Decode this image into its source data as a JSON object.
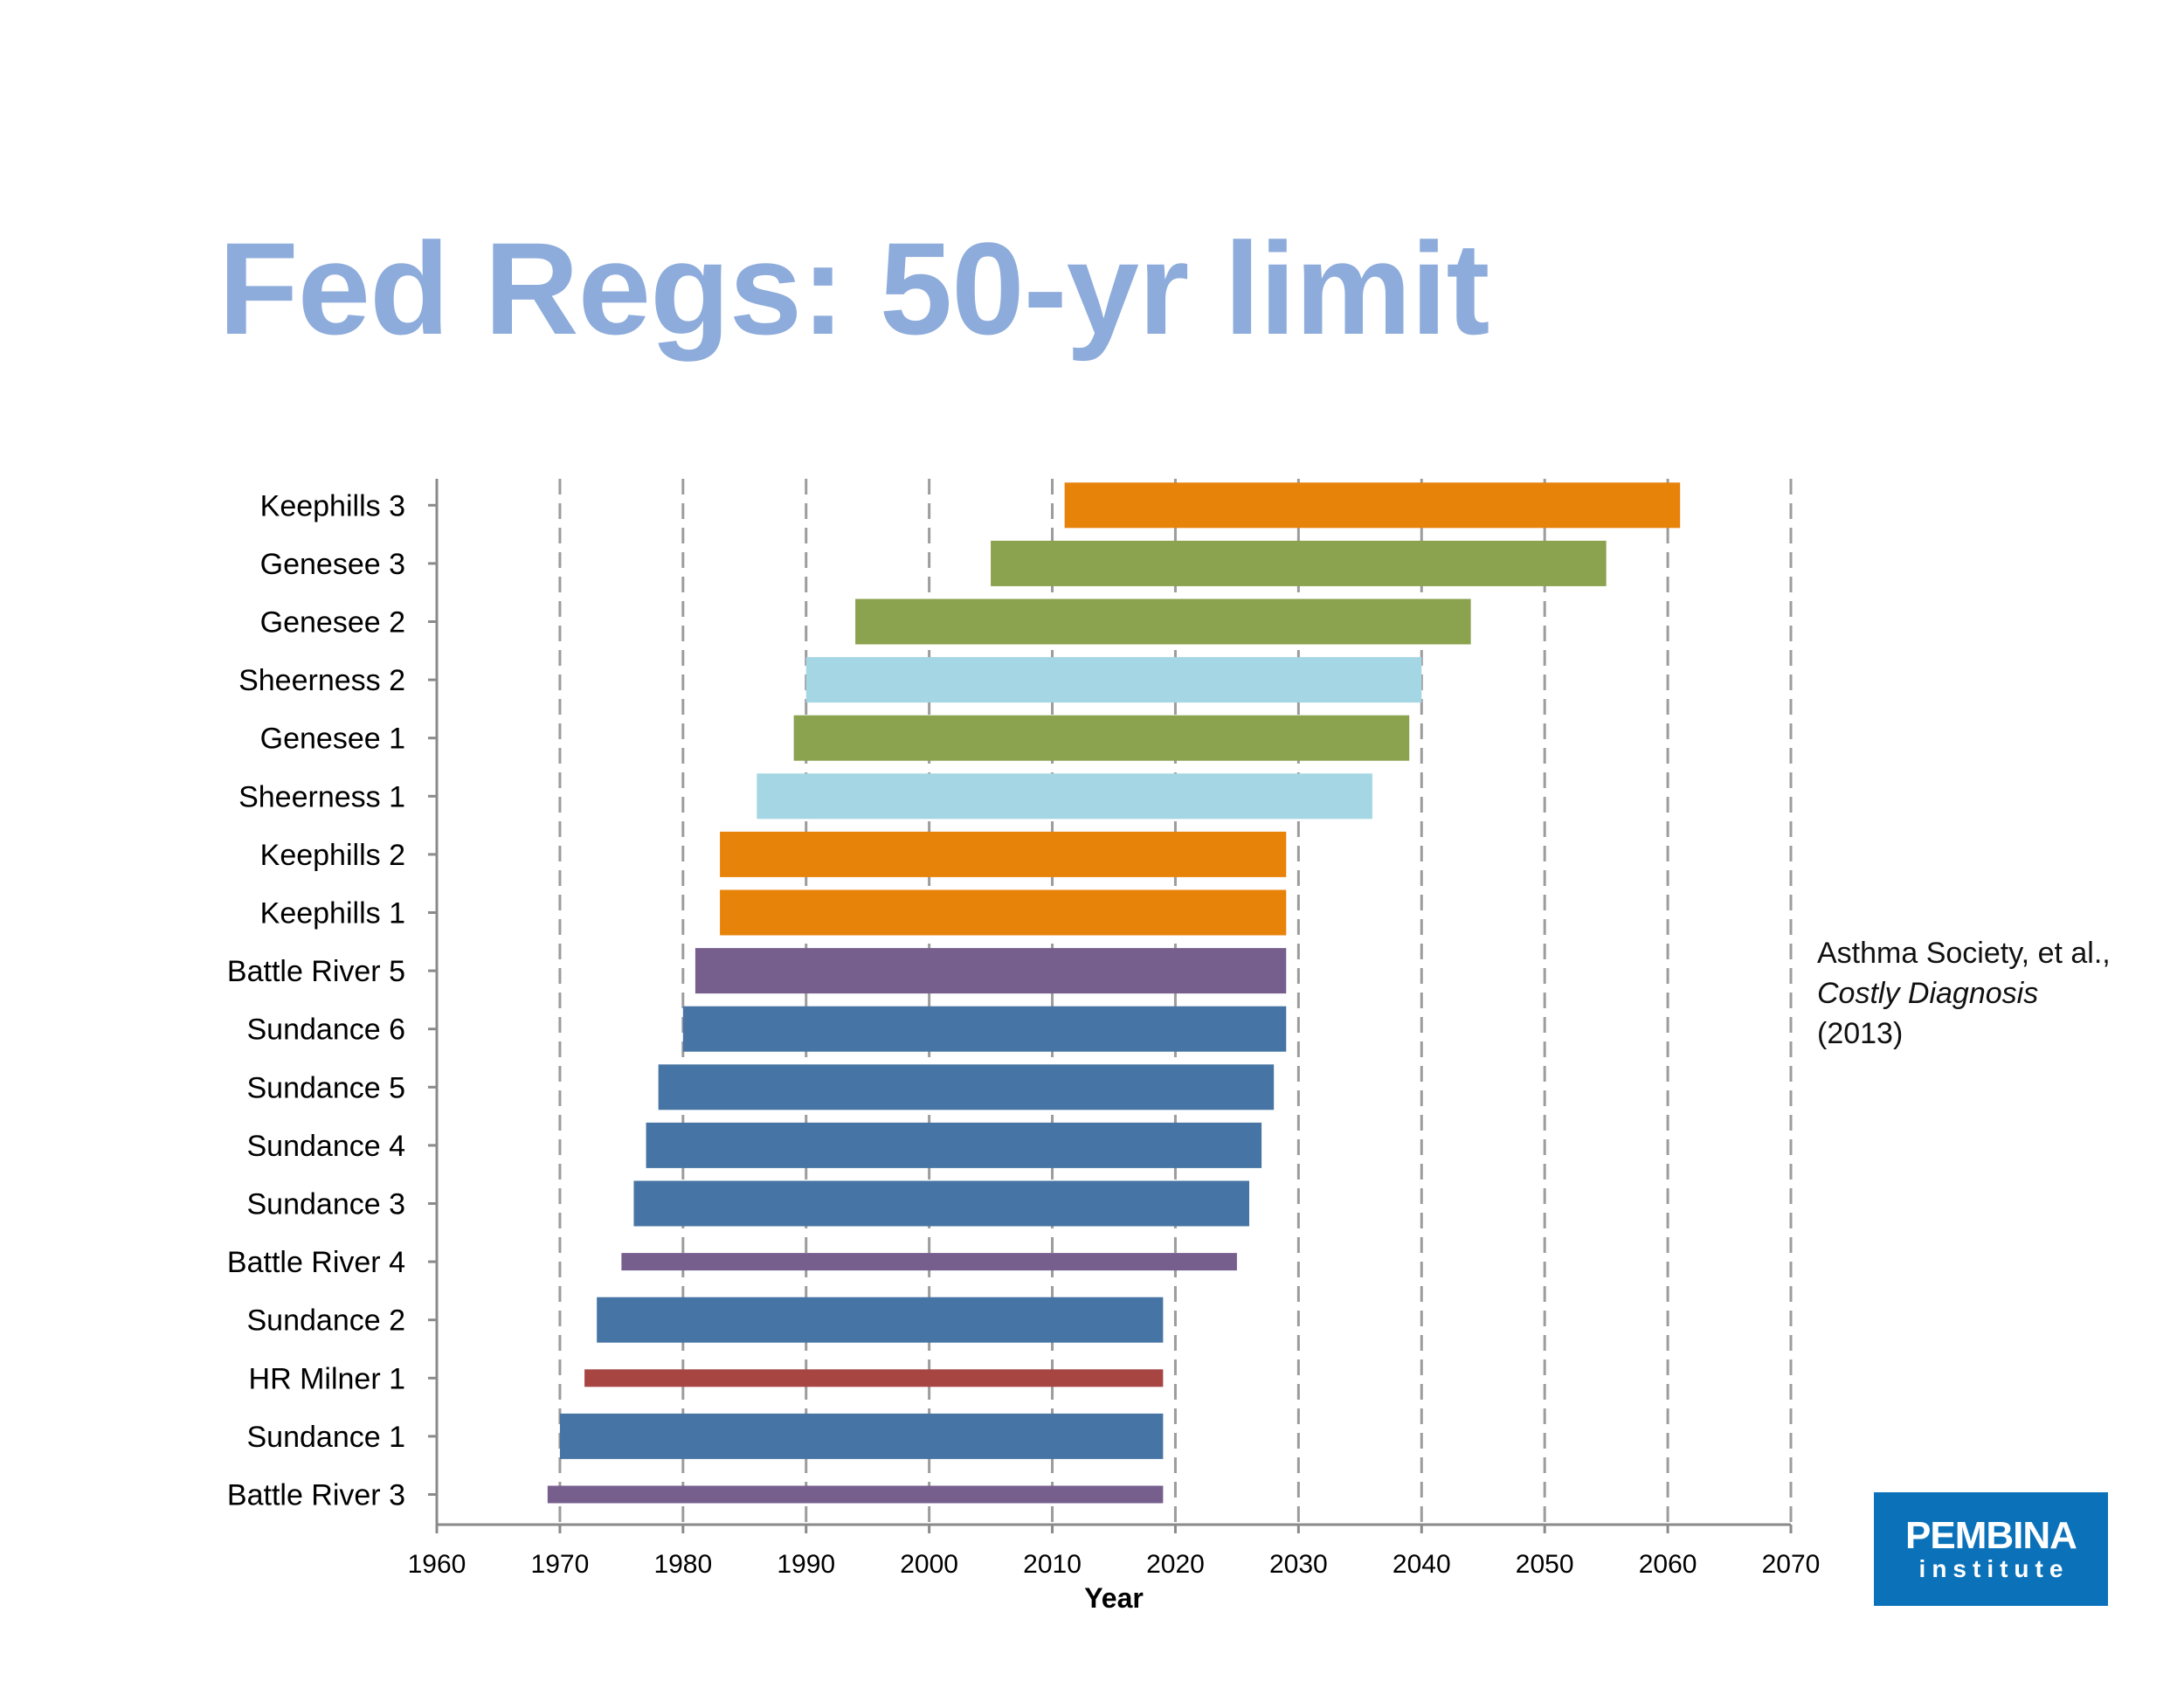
{
  "slide": {
    "title": "Fed Regs: 50-yr limit",
    "citation_prefix": "Asthma Society, et al., ",
    "citation_work": "Costly Diagnosis",
    "citation_year": "(2013)"
  },
  "logo": {
    "name": "PEMBINA",
    "subtitle": "institute",
    "background": "#0B72BA"
  },
  "chart_data": {
    "type": "bar",
    "orientation": "horizontal-range",
    "title": "",
    "xlabel": "Year",
    "ylabel": "",
    "xlim": [
      1960,
      2070
    ],
    "xticks": [
      "1960",
      "1970",
      "1980",
      "1990",
      "2000",
      "2010",
      "2020",
      "2030",
      "2040",
      "2050",
      "2060",
      "2070"
    ],
    "grid": "vertical dashed gridlines",
    "legend": "none",
    "categories": [
      "Keephills 3",
      "Genesee 3",
      "Genesee 2",
      "Sheerness 2",
      "Genesee 1",
      "Sheerness 1",
      "Keephills 2",
      "Keephills 1",
      "Battle River 5",
      "Sundance 6",
      "Sundance 5",
      "Sundance 4",
      "Sundance 3",
      "Battle River 4",
      "Sundance 2",
      "HR Milner 1",
      "Sundance 1",
      "Battle River 3"
    ],
    "start": [
      2011,
      2005,
      1994,
      1990,
      1989,
      1986,
      1983,
      1983,
      1981,
      1980,
      1978,
      1977,
      1976,
      1975,
      1973,
      1972,
      1970,
      1969
    ],
    "end": [
      2061,
      2055,
      2044,
      2040,
      2039,
      2036,
      2029,
      2029,
      2029,
      2029,
      2028,
      2027,
      2026,
      2025,
      2019,
      2019,
      2019,
      2019
    ],
    "thickness": [
      "full",
      "full",
      "full",
      "full",
      "full",
      "full",
      "full",
      "full",
      "full",
      "full",
      "full",
      "full",
      "full",
      "thin",
      "full",
      "thin",
      "full",
      "thin"
    ],
    "colors": [
      "#E8830A",
      "#8BA24E",
      "#8BA24E",
      "#A5D6E4",
      "#8BA24E",
      "#A5D6E4",
      "#E8830A",
      "#E8830A",
      "#765F8D",
      "#4674A4",
      "#4674A4",
      "#4674A4",
      "#4674A4",
      "#765F8D",
      "#4674A4",
      "#A64541",
      "#4674A4",
      "#765F8D"
    ]
  }
}
